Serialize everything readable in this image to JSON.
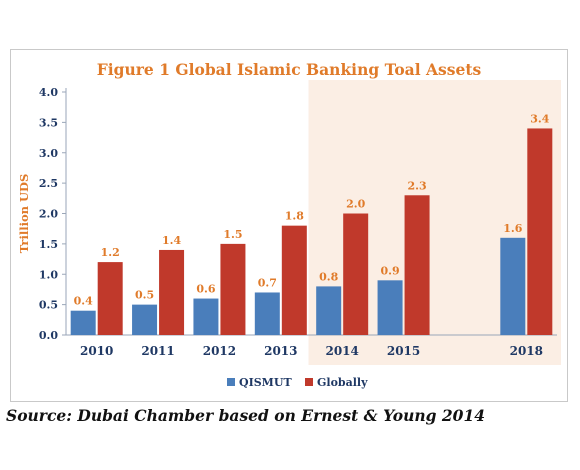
{
  "colors": {
    "qismut": "#4a7ebb",
    "globally": "#c0392b",
    "accent_text": "#e07b2a",
    "axis_text": "#1f3864",
    "highlight_band": "#fbeee4",
    "value_label_blue": "#e07b2a",
    "value_label_red": "#e07b2a"
  },
  "chart_data": {
    "type": "bar",
    "title": "Figure 1 Global Islamic Banking Toal Assets",
    "xlabel": "",
    "ylabel": "Trillion UDS",
    "ylim": [
      0,
      4.0
    ],
    "yticks": [
      "0.0",
      "0.5",
      "1.0",
      "1.5",
      "2.0",
      "2.5",
      "3.0",
      "3.5",
      "4.0"
    ],
    "categories": [
      "2010",
      "2011",
      "2012",
      "2013",
      "2014",
      "2015",
      "",
      "2018"
    ],
    "series": [
      {
        "name": "QISMUT",
        "color": "#4a7ebb",
        "values": [
          0.4,
          0.5,
          0.6,
          0.7,
          0.8,
          0.9,
          null,
          1.6
        ],
        "labels": [
          "0.4",
          "0.5",
          "0.6",
          "0.7",
          "0.8",
          "0.9",
          "",
          "1.6"
        ]
      },
      {
        "name": "Globally",
        "color": "#c0392b",
        "values": [
          1.2,
          1.4,
          1.5,
          1.8,
          2.0,
          2.3,
          null,
          3.4
        ],
        "labels": [
          "1.2",
          "1.4",
          "1.5",
          "1.8",
          "2.0",
          "2.3",
          "",
          "3.4"
        ]
      }
    ],
    "highlighted_categories": [
      "2014",
      "2015",
      "",
      "2018"
    ],
    "grid": false,
    "legend_position": "bottom"
  },
  "source": "Source: Dubai Chamber based on Ernest & Young 2014"
}
